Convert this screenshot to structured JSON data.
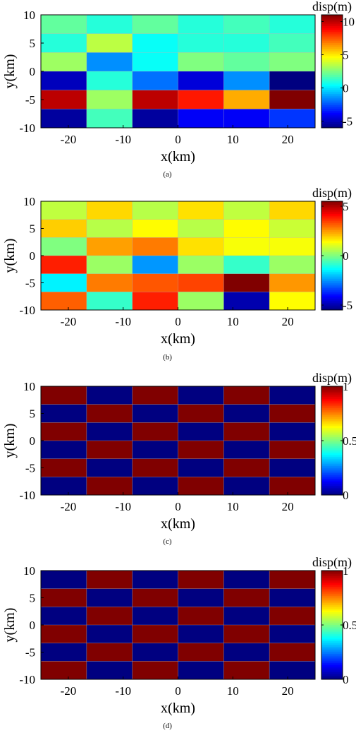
{
  "chart_data": [
    {
      "type": "heatmap",
      "panel_label": "(a)",
      "xlabel": "x(km)",
      "ylabel": "y(km)",
      "colorbar_label": "disp(m)",
      "xlim": [
        -25,
        25
      ],
      "ylim": [
        -10,
        10
      ],
      "x_ticks": [
        "-20",
        "-10",
        "0",
        "10",
        "20"
      ],
      "y_ticks": [
        "10",
        "5",
        "0",
        "-5",
        "-10"
      ],
      "colorbar_range": [
        -6,
        11
      ],
      "colorbar_ticks": [
        "10",
        "5",
        "0",
        "-5"
      ],
      "columns_x_centers": [
        -20.83,
        -12.5,
        -4.17,
        4.17,
        12.5,
        20.83
      ],
      "rows_y_centers": [
        8.33,
        5.0,
        1.67,
        -1.67,
        -5.0,
        -8.33
      ],
      "values": [
        [
          2.0,
          1.0,
          2.0,
          1.0,
          1.5,
          1.0
        ],
        [
          1.0,
          3.5,
          0.5,
          1.0,
          1.0,
          1.5
        ],
        [
          3.0,
          -1.5,
          0.5,
          2.5,
          2.0,
          2.5
        ],
        [
          -5.0,
          1.0,
          -2.0,
          -4.5,
          -1.5,
          -6.0
        ],
        [
          10.0,
          3.0,
          10.0,
          8.5,
          6.0,
          11.0
        ],
        [
          -5.5,
          1.5,
          -5.5,
          -4.0,
          -4.0,
          -3.0
        ]
      ]
    },
    {
      "type": "heatmap",
      "panel_label": "(b)",
      "xlabel": "x(km)",
      "ylabel": "y(km)",
      "colorbar_label": "disp(m)",
      "xlim": [
        -25,
        25
      ],
      "ylim": [
        -10,
        10
      ],
      "x_ticks": [
        "-20",
        "-10",
        "0",
        "10",
        "20"
      ],
      "y_ticks": [
        "10",
        "5",
        "0",
        "-5",
        "-10"
      ],
      "colorbar_range": [
        -5.5,
        5.5
      ],
      "colorbar_ticks": [
        "5",
        "0",
        "-5"
      ],
      "columns_x_centers": [
        -20.83,
        -12.5,
        -4.17,
        4.17,
        12.5,
        20.83
      ],
      "rows_y_centers": [
        8.33,
        5.0,
        1.67,
        -1.67,
        -5.0,
        -8.33
      ],
      "values": [
        [
          0.7,
          1.8,
          0.6,
          1.7,
          0.7,
          1.8
        ],
        [
          1.9,
          0.6,
          1.4,
          0.6,
          1.4,
          0.8
        ],
        [
          0.0,
          2.4,
          2.8,
          1.7,
          1.3,
          1.3
        ],
        [
          3.8,
          0.3,
          -2.5,
          0.3,
          -0.8,
          0.3
        ],
        [
          -1.5,
          2.8,
          3.2,
          3.4,
          5.5,
          2.5
        ],
        [
          3.1,
          -0.8,
          3.8,
          0.3,
          -5.0,
          1.4
        ]
      ]
    },
    {
      "type": "heatmap",
      "panel_label": "(c)",
      "xlabel": "x(km)",
      "ylabel": "y(km)",
      "colorbar_label": "disp(m)",
      "xlim": [
        -25,
        25
      ],
      "ylim": [
        -10,
        10
      ],
      "x_ticks": [
        "-20",
        "-10",
        "0",
        "10",
        "20"
      ],
      "y_ticks": [
        "10",
        "5",
        "0",
        "-5",
        "-10"
      ],
      "colorbar_range": [
        0,
        1
      ],
      "colorbar_ticks": [
        "1",
        "0.5",
        "0"
      ],
      "columns_x_centers": [
        -20.83,
        -12.5,
        -4.17,
        4.17,
        12.5,
        20.83
      ],
      "rows_y_centers": [
        8.33,
        5.0,
        1.67,
        -1.67,
        -5.0,
        -8.33
      ],
      "values": [
        [
          1,
          0,
          1,
          0,
          1,
          0
        ],
        [
          0,
          1,
          0,
          1,
          0,
          1
        ],
        [
          1,
          0,
          1,
          0,
          1,
          0
        ],
        [
          0,
          1,
          0,
          1,
          0,
          1
        ],
        [
          1,
          0,
          1,
          0,
          1,
          0
        ],
        [
          0,
          1,
          0,
          1,
          0,
          1
        ]
      ]
    },
    {
      "type": "heatmap",
      "panel_label": "(d)",
      "xlabel": "x(km)",
      "ylabel": "y(km)",
      "colorbar_label": "disp(m)",
      "xlim": [
        -25,
        25
      ],
      "ylim": [
        -10,
        10
      ],
      "x_ticks": [
        "-20",
        "-10",
        "0",
        "10",
        "20"
      ],
      "y_ticks": [
        "10",
        "5",
        "0",
        "-5",
        "-10"
      ],
      "colorbar_range": [
        0,
        1
      ],
      "colorbar_ticks": [
        "1",
        "0.5",
        "0"
      ],
      "columns_x_centers": [
        -20.83,
        -12.5,
        -4.17,
        4.17,
        12.5,
        20.83
      ],
      "rows_y_centers": [
        8.33,
        5.0,
        1.67,
        -1.67,
        -5.0,
        -8.33
      ],
      "values": [
        [
          0,
          1,
          0,
          1,
          0,
          1
        ],
        [
          1,
          0,
          1,
          0,
          1,
          0
        ],
        [
          0,
          1,
          0,
          1,
          0,
          1
        ],
        [
          1,
          0,
          1,
          0,
          1,
          0
        ],
        [
          0,
          1,
          0,
          1,
          0,
          1
        ],
        [
          1,
          0,
          1,
          0,
          1,
          0
        ]
      ]
    }
  ],
  "colormap": "jet"
}
